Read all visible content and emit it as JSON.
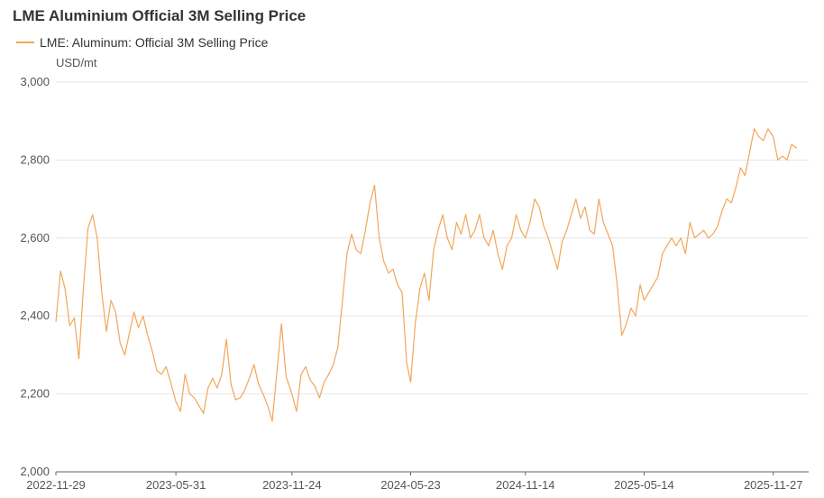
{
  "title": "LME Aluminium Official 3M Selling Price",
  "legend": {
    "label": "LME: Aluminum: Official 3M Selling Price"
  },
  "colors": {
    "series": "#f2a65a",
    "grid": "#e6e6e6",
    "axis": "#666666"
  },
  "chart_data": {
    "type": "line",
    "title": "LME Aluminium Official 3M Selling Price",
    "ylabel": "USD/mt",
    "ylim": [
      2000,
      3000
    ],
    "yticks": [
      2000,
      2200,
      2400,
      2600,
      2800,
      3000
    ],
    "ytick_labels": [
      "2,000",
      "2,200",
      "2,400",
      "2,600",
      "2,800",
      "3,000"
    ],
    "xlim": [
      "2022-11-29",
      "2026-01-20"
    ],
    "xtick_labels": [
      "2022-11-29",
      "2023-05-31",
      "2023-11-24",
      "2024-05-23",
      "2024-11-14",
      "2025-05-14",
      "2025-11-27"
    ],
    "series": [
      {
        "name": "LME: Aluminum: Official 3M Selling Price",
        "points": [
          [
            "2022-11-29",
            2385
          ],
          [
            "2022-12-06",
            2515
          ],
          [
            "2022-12-13",
            2470
          ],
          [
            "2022-12-20",
            2375
          ],
          [
            "2022-12-27",
            2395
          ],
          [
            "2023-01-03",
            2290
          ],
          [
            "2023-01-10",
            2470
          ],
          [
            "2023-01-17",
            2625
          ],
          [
            "2023-01-24",
            2660
          ],
          [
            "2023-01-31",
            2600
          ],
          [
            "2023-02-07",
            2460
          ],
          [
            "2023-02-14",
            2360
          ],
          [
            "2023-02-21",
            2440
          ],
          [
            "2023-02-28",
            2410
          ],
          [
            "2023-03-07",
            2330
          ],
          [
            "2023-03-14",
            2300
          ],
          [
            "2023-03-21",
            2355
          ],
          [
            "2023-03-28",
            2410
          ],
          [
            "2023-04-04",
            2370
          ],
          [
            "2023-04-11",
            2400
          ],
          [
            "2023-04-18",
            2350
          ],
          [
            "2023-04-25",
            2310
          ],
          [
            "2023-05-02",
            2260
          ],
          [
            "2023-05-09",
            2250
          ],
          [
            "2023-05-16",
            2270
          ],
          [
            "2023-05-23",
            2230
          ],
          [
            "2023-05-31",
            2180
          ],
          [
            "2023-06-07",
            2155
          ],
          [
            "2023-06-14",
            2250
          ],
          [
            "2023-06-21",
            2200
          ],
          [
            "2023-06-28",
            2190
          ],
          [
            "2023-07-05",
            2170
          ],
          [
            "2023-07-12",
            2150
          ],
          [
            "2023-07-19",
            2215
          ],
          [
            "2023-07-26",
            2240
          ],
          [
            "2023-08-02",
            2215
          ],
          [
            "2023-08-09",
            2250
          ],
          [
            "2023-08-16",
            2340
          ],
          [
            "2023-08-23",
            2225
          ],
          [
            "2023-08-30",
            2185
          ],
          [
            "2023-09-06",
            2190
          ],
          [
            "2023-09-13",
            2210
          ],
          [
            "2023-09-20",
            2240
          ],
          [
            "2023-09-27",
            2275
          ],
          [
            "2023-10-04",
            2225
          ],
          [
            "2023-10-11",
            2200
          ],
          [
            "2023-10-18",
            2170
          ],
          [
            "2023-10-25",
            2130
          ],
          [
            "2023-11-01",
            2255
          ],
          [
            "2023-11-08",
            2380
          ],
          [
            "2023-11-15",
            2245
          ],
          [
            "2023-11-24",
            2200
          ],
          [
            "2023-12-01",
            2155
          ],
          [
            "2023-12-08",
            2250
          ],
          [
            "2023-12-15",
            2270
          ],
          [
            "2023-12-22",
            2235
          ],
          [
            "2023-12-29",
            2220
          ],
          [
            "2024-01-05",
            2190
          ],
          [
            "2024-01-12",
            2230
          ],
          [
            "2024-01-19",
            2250
          ],
          [
            "2024-01-26",
            2275
          ],
          [
            "2024-02-02",
            2320
          ],
          [
            "2024-02-09",
            2440
          ],
          [
            "2024-02-16",
            2560
          ],
          [
            "2024-02-23",
            2610
          ],
          [
            "2024-03-01",
            2570
          ],
          [
            "2024-03-08",
            2560
          ],
          [
            "2024-03-15",
            2620
          ],
          [
            "2024-03-22",
            2690
          ],
          [
            "2024-03-29",
            2735
          ],
          [
            "2024-04-05",
            2600
          ],
          [
            "2024-04-12",
            2540
          ],
          [
            "2024-04-19",
            2510
          ],
          [
            "2024-04-26",
            2520
          ],
          [
            "2024-05-03",
            2480
          ],
          [
            "2024-05-10",
            2460
          ],
          [
            "2024-05-17",
            2280
          ],
          [
            "2024-05-23",
            2230
          ],
          [
            "2024-05-30",
            2380
          ],
          [
            "2024-06-06",
            2470
          ],
          [
            "2024-06-13",
            2510
          ],
          [
            "2024-06-20",
            2440
          ],
          [
            "2024-06-27",
            2570
          ],
          [
            "2024-07-04",
            2620
          ],
          [
            "2024-07-11",
            2660
          ],
          [
            "2024-07-18",
            2600
          ],
          [
            "2024-07-25",
            2570
          ],
          [
            "2024-08-01",
            2640
          ],
          [
            "2024-08-08",
            2610
          ],
          [
            "2024-08-15",
            2660
          ],
          [
            "2024-08-22",
            2600
          ],
          [
            "2024-08-29",
            2620
          ],
          [
            "2024-09-05",
            2660
          ],
          [
            "2024-09-12",
            2600
          ],
          [
            "2024-09-19",
            2580
          ],
          [
            "2024-09-26",
            2620
          ],
          [
            "2024-10-03",
            2560
          ],
          [
            "2024-10-10",
            2520
          ],
          [
            "2024-10-17",
            2580
          ],
          [
            "2024-10-24",
            2600
          ],
          [
            "2024-10-31",
            2660
          ],
          [
            "2024-11-07",
            2620
          ],
          [
            "2024-11-14",
            2600
          ],
          [
            "2024-11-21",
            2640
          ],
          [
            "2024-11-28",
            2700
          ],
          [
            "2024-12-05",
            2680
          ],
          [
            "2024-12-12",
            2630
          ],
          [
            "2024-12-19",
            2600
          ],
          [
            "2024-12-26",
            2560
          ],
          [
            "2025-01-02",
            2520
          ],
          [
            "2025-01-09",
            2590
          ],
          [
            "2025-01-16",
            2620
          ],
          [
            "2025-01-23",
            2660
          ],
          [
            "2025-01-30",
            2700
          ],
          [
            "2025-02-06",
            2650
          ],
          [
            "2025-02-13",
            2680
          ],
          [
            "2025-02-20",
            2620
          ],
          [
            "2025-02-27",
            2610
          ],
          [
            "2025-03-06",
            2700
          ],
          [
            "2025-03-13",
            2640
          ],
          [
            "2025-03-20",
            2610
          ],
          [
            "2025-03-27",
            2580
          ],
          [
            "2025-04-03",
            2480
          ],
          [
            "2025-04-10",
            2350
          ],
          [
            "2025-04-17",
            2380
          ],
          [
            "2025-04-24",
            2420
          ],
          [
            "2025-05-01",
            2400
          ],
          [
            "2025-05-08",
            2480
          ],
          [
            "2025-05-14",
            2440
          ],
          [
            "2025-05-21",
            2460
          ],
          [
            "2025-05-28",
            2480
          ],
          [
            "2025-06-04",
            2500
          ],
          [
            "2025-06-11",
            2560
          ],
          [
            "2025-06-18",
            2580
          ],
          [
            "2025-06-25",
            2600
          ],
          [
            "2025-07-02",
            2580
          ],
          [
            "2025-07-09",
            2600
          ],
          [
            "2025-07-16",
            2560
          ],
          [
            "2025-07-23",
            2640
          ],
          [
            "2025-07-30",
            2600
          ],
          [
            "2025-08-06",
            2610
          ],
          [
            "2025-08-13",
            2620
          ],
          [
            "2025-08-20",
            2600
          ],
          [
            "2025-08-27",
            2610
          ],
          [
            "2025-09-03",
            2630
          ],
          [
            "2025-09-10",
            2670
          ],
          [
            "2025-09-17",
            2700
          ],
          [
            "2025-09-24",
            2690
          ],
          [
            "2025-10-01",
            2730
          ],
          [
            "2025-10-08",
            2780
          ],
          [
            "2025-10-15",
            2760
          ],
          [
            "2025-10-22",
            2820
          ],
          [
            "2025-10-29",
            2880
          ],
          [
            "2025-11-05",
            2860
          ],
          [
            "2025-11-12",
            2850
          ],
          [
            "2025-11-19",
            2880
          ],
          [
            "2025-11-27",
            2860
          ],
          [
            "2025-12-04",
            2800
          ],
          [
            "2025-12-11",
            2810
          ],
          [
            "2025-12-18",
            2800
          ],
          [
            "2025-12-25",
            2840
          ],
          [
            "2026-01-02",
            2830
          ]
        ]
      }
    ]
  }
}
